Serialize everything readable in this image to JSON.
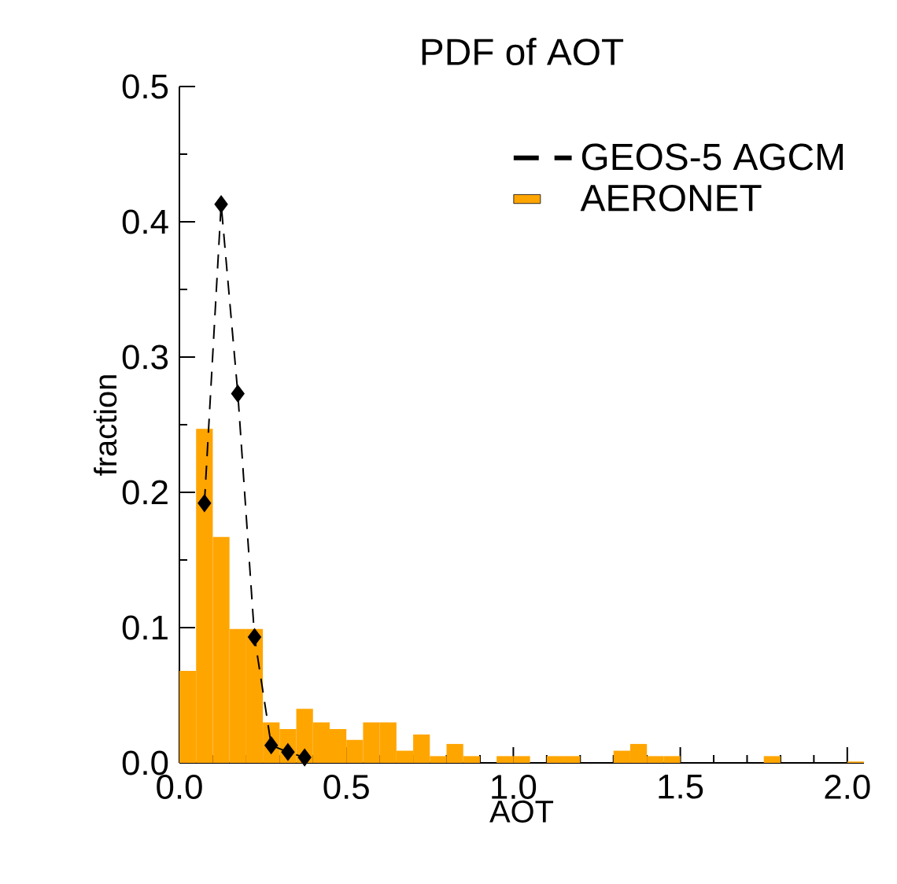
{
  "chart_data": {
    "type": "histogram",
    "title": "PDF of AOT",
    "xlabel": "AOT",
    "ylabel": "fraction",
    "xlim": [
      0,
      2.05
    ],
    "ylim": [
      0,
      0.5
    ],
    "xticks": [
      {
        "value": 0,
        "label": "0.0"
      },
      {
        "value": 0.5,
        "label": "0.5"
      },
      {
        "value": 1,
        "label": "1.0"
      },
      {
        "value": 1.5,
        "label": "1.5"
      },
      {
        "value": 2,
        "label": "2.0"
      }
    ],
    "yticks": [
      {
        "value": 0,
        "label": "0.0"
      },
      {
        "value": 0.1,
        "label": "0.1"
      },
      {
        "value": 0.2,
        "label": "0.2"
      },
      {
        "value": 0.3,
        "label": "0.3"
      },
      {
        "value": 0.4,
        "label": "0.4"
      },
      {
        "value": 0.5,
        "label": "0.5"
      }
    ],
    "legend": "top right",
    "series": [
      {
        "name": "GEOS-5 AGCM",
        "type": "line",
        "color": "#000000",
        "line_style": "dashed",
        "marker": "diamond",
        "x": [
          0.075,
          0.125,
          0.175,
          0.225,
          0.275,
          0.325,
          0.375
        ],
        "values": [
          0.192,
          0.413,
          0.273,
          0.093,
          0.013,
          0.008,
          0.004
        ]
      },
      {
        "name": "AERONET",
        "color": "#ffa500",
        "bins": [
          0,
          0.05,
          0.1,
          0.15,
          0.2,
          0.25,
          0.3,
          0.35,
          0.4,
          0.45,
          0.5,
          0.55,
          0.6,
          0.65,
          0.7,
          0.75,
          0.8,
          0.85,
          0.9,
          0.95,
          1.0,
          1.05,
          1.1,
          1.15,
          1.2,
          1.25,
          1.3,
          1.35,
          1.4,
          1.45,
          1.5,
          1.55,
          1.6,
          1.65,
          1.7,
          1.75,
          1.8,
          1.85,
          1.9,
          1.95,
          2.0,
          2.05
        ],
        "values": [
          0.068,
          0.247,
          0.167,
          0.099,
          0.099,
          0.03,
          0.025,
          0.04,
          0.03,
          0.025,
          0.017,
          0.03,
          0.03,
          0.009,
          0.021,
          0.005,
          0.014,
          0.005,
          0,
          0.005,
          0.005,
          0,
          0.005,
          0.005,
          0,
          0,
          0.009,
          0.014,
          0.005,
          0.005,
          0,
          0,
          0,
          0,
          0,
          0.005,
          0,
          0,
          0,
          0,
          0.001
        ]
      }
    ]
  }
}
